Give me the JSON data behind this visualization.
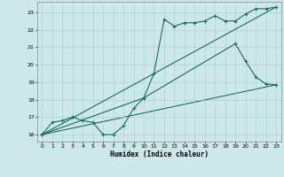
{
  "xlabel": "Humidex (Indice chaleur)",
  "bg_color": "#cce8e8",
  "grid_color": "#aacccc",
  "line_color": "#1a6b5a",
  "xlim": [
    -0.5,
    23.5
  ],
  "ylim": [
    15.6,
    23.6
  ],
  "xticks": [
    0,
    1,
    2,
    3,
    4,
    5,
    6,
    7,
    8,
    9,
    10,
    11,
    12,
    13,
    14,
    15,
    16,
    17,
    18,
    19,
    20,
    21,
    22,
    23
  ],
  "yticks": [
    16,
    17,
    18,
    19,
    20,
    21,
    22,
    23
  ],
  "line1_x": [
    0,
    1,
    2,
    3,
    4,
    5,
    6,
    7,
    8,
    9,
    10,
    11,
    12,
    13,
    14,
    15,
    16,
    17,
    18,
    19,
    20,
    21,
    22,
    23
  ],
  "line1_y": [
    16.0,
    16.7,
    16.8,
    17.0,
    16.8,
    16.7,
    16.0,
    16.0,
    16.5,
    17.5,
    18.1,
    19.5,
    22.6,
    22.2,
    22.4,
    22.4,
    22.5,
    22.8,
    22.5,
    22.5,
    22.9,
    23.2,
    23.2,
    23.3
  ],
  "line2_x": [
    0,
    23
  ],
  "line2_y": [
    16.0,
    23.3
  ],
  "line3_x": [
    0,
    10,
    19,
    20,
    21,
    22,
    23
  ],
  "line3_y": [
    16.0,
    18.1,
    21.2,
    20.2,
    19.3,
    18.9,
    18.85
  ],
  "line4_x": [
    0,
    23
  ],
  "line4_y": [
    16.0,
    18.85
  ]
}
